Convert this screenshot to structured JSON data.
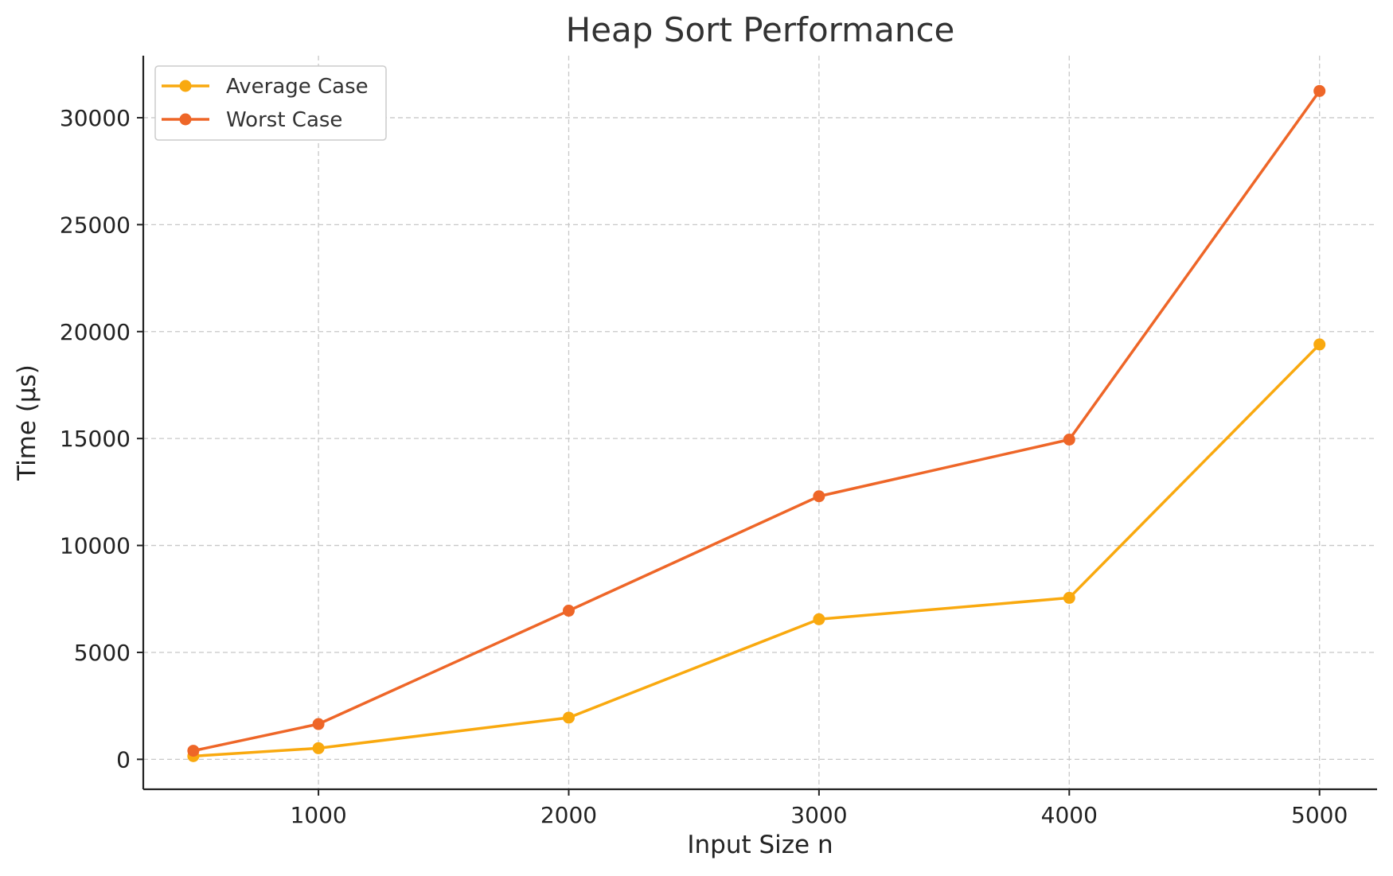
{
  "chart_data": {
    "type": "line",
    "title": "Heap Sort Performance",
    "xlabel": "Input Size n",
    "ylabel": "Time (µs)",
    "x": [
      500,
      1000,
      2000,
      3000,
      4000,
      5000
    ],
    "xlim": [
      300,
      5230
    ],
    "ylim": [
      -1400,
      32900
    ],
    "xticks": [
      1000,
      2000,
      3000,
      4000,
      5000
    ],
    "yticks": [
      0,
      5000,
      10000,
      15000,
      20000,
      25000,
      30000
    ],
    "grid": true,
    "legend_position": "top-left",
    "series": [
      {
        "name": "Average Case",
        "color": "#F9A90F",
        "marker": "circle",
        "values": [
          150,
          520,
          1950,
          6550,
          7550,
          19400
        ]
      },
      {
        "name": "Worst Case",
        "color": "#EE6628",
        "marker": "circle",
        "values": [
          400,
          1650,
          6950,
          12300,
          14950,
          31250
        ]
      }
    ]
  }
}
